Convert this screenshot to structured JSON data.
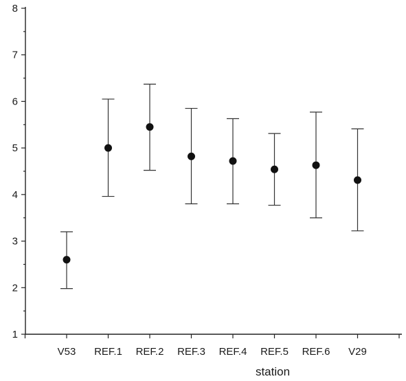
{
  "chart_data": {
    "type": "scatter",
    "categories": [
      "V53",
      "REF.1",
      "REF.2",
      "REF.3",
      "REF.4",
      "REF.5",
      "REF.6",
      "V29"
    ],
    "values": [
      2.6,
      5.0,
      5.45,
      4.82,
      4.72,
      4.54,
      4.63,
      4.31
    ],
    "error_upper": [
      3.2,
      6.05,
      6.37,
      5.85,
      5.63,
      5.31,
      5.77,
      5.41
    ],
    "error_lower": [
      1.98,
      3.96,
      4.52,
      3.8,
      3.8,
      3.77,
      3.5,
      3.22
    ],
    "xlabel": "station",
    "ylabel": "",
    "title": "",
    "ylim": [
      1,
      8
    ],
    "yticks": [
      "1",
      "2",
      "3",
      "4",
      "5",
      "6",
      "7",
      "8"
    ],
    "grid": false,
    "colors": {
      "marker": "#111111",
      "error_bar": "#333333",
      "axis": "#222222"
    }
  }
}
